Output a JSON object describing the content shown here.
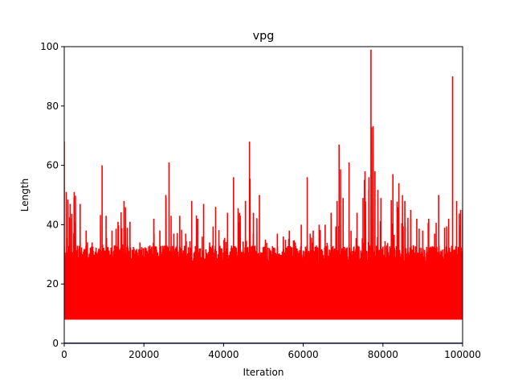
{
  "chart_data": {
    "type": "line",
    "title": "vpg",
    "xlabel": "Iteration",
    "ylabel": "Length",
    "xlim": [
      0,
      100000
    ],
    "ylim": [
      0,
      100
    ],
    "x_ticks": [
      0,
      20000,
      40000,
      60000,
      80000,
      100000
    ],
    "x_tick_labels": [
      "0",
      "20000",
      "40000",
      "60000",
      "80000",
      "100000"
    ],
    "y_ticks": [
      0,
      20,
      40,
      60,
      80,
      100
    ],
    "y_tick_labels": [
      "0",
      "20",
      "40",
      "60",
      "80",
      "100"
    ],
    "grid": false,
    "series": [
      {
        "color": "#ff0000",
        "style": "dense-oscillation",
        "baseline": 8,
        "typical_upper": 27,
        "envelope": [
          [
            0,
            68
          ],
          [
            500,
            51
          ],
          [
            1500,
            47
          ],
          [
            2500,
            51
          ],
          [
            4000,
            47
          ],
          [
            5500,
            38
          ],
          [
            7000,
            34
          ],
          [
            8500,
            31
          ],
          [
            9500,
            60
          ],
          [
            10500,
            43
          ],
          [
            12000,
            38
          ],
          [
            13500,
            41
          ],
          [
            15000,
            48
          ],
          [
            16500,
            41
          ],
          [
            18000,
            29
          ],
          [
            19000,
            34
          ],
          [
            20000,
            25
          ],
          [
            21500,
            33
          ],
          [
            22500,
            42
          ],
          [
            24000,
            38
          ],
          [
            25500,
            50
          ],
          [
            26300,
            61
          ],
          [
            27500,
            37
          ],
          [
            29000,
            43
          ],
          [
            30500,
            37
          ],
          [
            32000,
            48
          ],
          [
            33500,
            42
          ],
          [
            35000,
            47
          ],
          [
            36500,
            34
          ],
          [
            38000,
            46
          ],
          [
            39500,
            32
          ],
          [
            41000,
            44
          ],
          [
            42500,
            56
          ],
          [
            44000,
            44
          ],
          [
            45500,
            48
          ],
          [
            46500,
            68
          ],
          [
            47500,
            44
          ],
          [
            49000,
            50
          ],
          [
            50500,
            35
          ],
          [
            52000,
            30
          ],
          [
            53500,
            37
          ],
          [
            55000,
            36
          ],
          [
            56500,
            38
          ],
          [
            58000,
            34
          ],
          [
            59500,
            40
          ],
          [
            61000,
            56
          ],
          [
            62500,
            38
          ],
          [
            64000,
            40
          ],
          [
            65500,
            40
          ],
          [
            67000,
            44
          ],
          [
            68500,
            48
          ],
          [
            69000,
            67
          ],
          [
            70000,
            49
          ],
          [
            71500,
            61
          ],
          [
            72500,
            30
          ],
          [
            73500,
            44
          ],
          [
            75000,
            49
          ],
          [
            75500,
            58
          ],
          [
            76500,
            56
          ],
          [
            77000,
            99
          ],
          [
            78000,
            58
          ],
          [
            79500,
            49
          ],
          [
            81000,
            33
          ],
          [
            82500,
            57
          ],
          [
            84000,
            54
          ],
          [
            85500,
            48
          ],
          [
            87000,
            45
          ],
          [
            88500,
            42
          ],
          [
            90000,
            38
          ],
          [
            91500,
            42
          ],
          [
            93000,
            37
          ],
          [
            94000,
            50
          ],
          [
            95500,
            39
          ],
          [
            96500,
            42
          ],
          [
            97500,
            90
          ],
          [
            98500,
            48
          ],
          [
            99500,
            45
          ],
          [
            100000,
            45
          ]
        ]
      },
      {
        "color": "#00008b",
        "style": "flat",
        "values": [
          [
            0,
            0
          ],
          [
            100000,
            0
          ]
        ]
      }
    ]
  }
}
